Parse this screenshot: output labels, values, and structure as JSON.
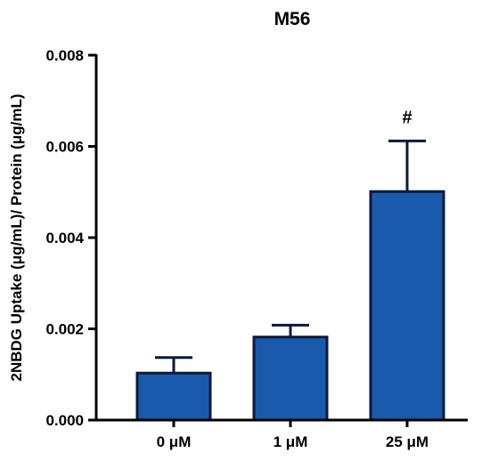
{
  "chart_data": {
    "type": "bar",
    "title": "M56",
    "xlabel": "",
    "ylabel": "2NBDG Uptake (μg/mL)/ Protein (μg/mL)",
    "categories": [
      "0 μM",
      "1 μM",
      "25 μM"
    ],
    "values": [
      0.00103,
      0.00182,
      0.00501
    ],
    "error_bars": [
      0.00034,
      0.00026,
      0.00111
    ],
    "annotations": [
      "",
      "",
      "#"
    ],
    "ylim": [
      0,
      0.008
    ],
    "yticks": [
      0,
      0.002,
      0.004,
      0.006,
      0.008
    ],
    "ytick_labels": [
      "0.000",
      "0.002",
      "0.004",
      "0.006",
      "0.008"
    ],
    "grid": false,
    "legend": "none",
    "colors": {
      "bar_fill": "#1a5aac",
      "bar_edge": "#0b1a3a",
      "axis": "#000000"
    }
  }
}
